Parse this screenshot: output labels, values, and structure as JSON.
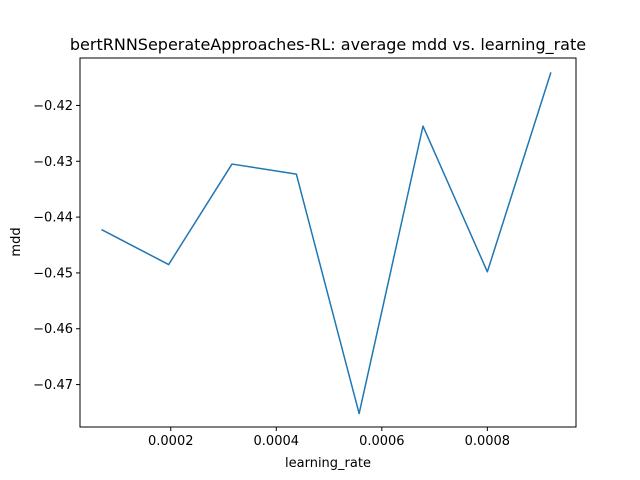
{
  "chart_data": {
    "type": "line",
    "title": "bertRNNSeperateApproaches-RL: average mdd vs. learning_rate",
    "xlabel": "learning_rate",
    "ylabel": "mdd",
    "xlim": [
      2.8e-05,
      0.000968
    ],
    "ylim": [
      -0.4776,
      -0.4115
    ],
    "xticks": [
      0.0002,
      0.0004,
      0.0006,
      0.0008
    ],
    "xtick_labels": [
      "0.0002",
      "0.0004",
      "0.0006",
      "0.0008"
    ],
    "yticks": [
      -0.47,
      -0.46,
      -0.45,
      -0.44,
      -0.43,
      -0.42
    ],
    "ytick_labels": [
      "−0.47",
      "−0.46",
      "−0.45",
      "−0.44",
      "−0.43",
      "−0.42"
    ],
    "grid": false,
    "legend": false,
    "series": [
      {
        "color": "#1f77b4",
        "x": [
          7e-05,
          0.000196,
          0.000316,
          0.000438,
          0.000557,
          0.000678,
          0.0008,
          0.00092
        ],
        "y": [
          -0.4423,
          -0.4485,
          -0.4305,
          -0.4323,
          -0.4752,
          -0.4237,
          -0.4498,
          -0.4142
        ]
      }
    ]
  }
}
